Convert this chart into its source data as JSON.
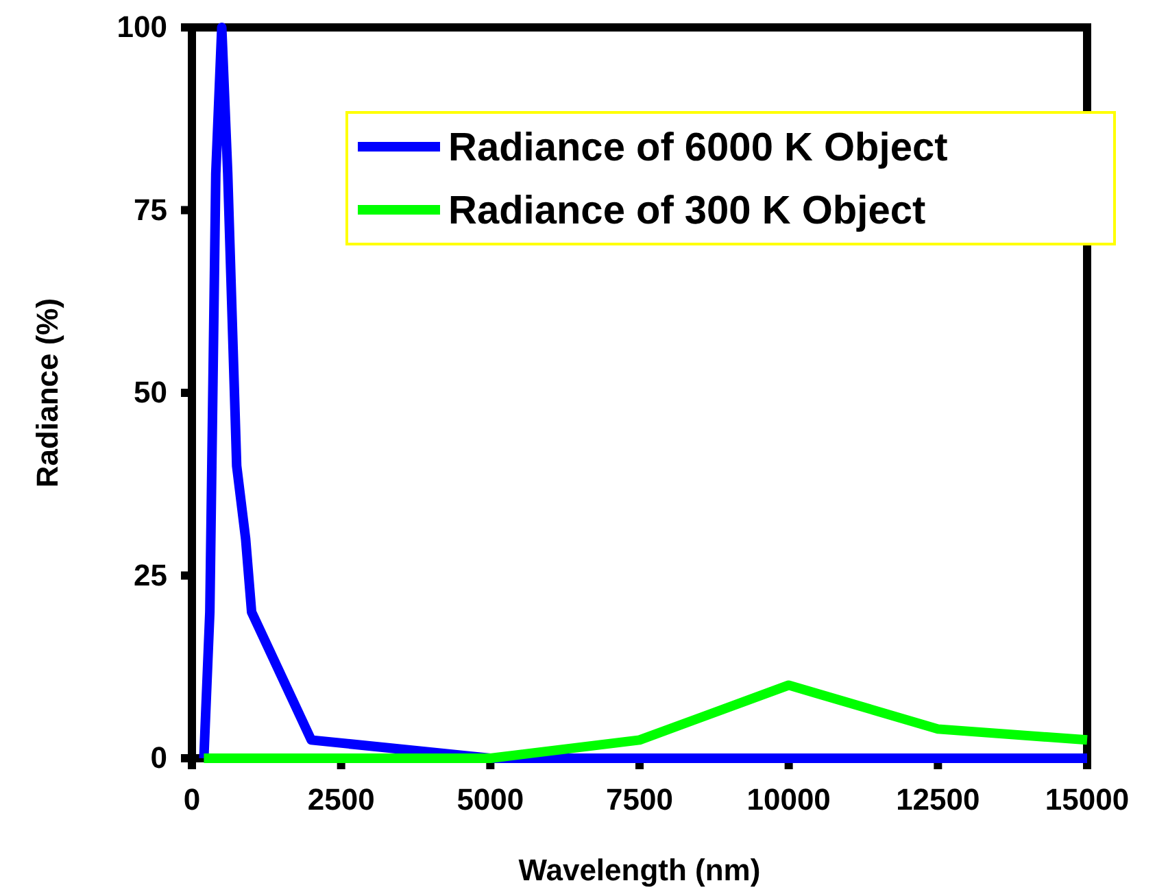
{
  "chart_data": {
    "type": "line",
    "xlabel": "Wavelength (nm)",
    "ylabel": "Radiance (%)",
    "xlim": [
      0,
      15000
    ],
    "xticks": [
      0,
      2500,
      5000,
      7500,
      10000,
      12500,
      15000
    ],
    "ylim": [
      0,
      100
    ],
    "yticks": [
      0,
      25,
      50,
      75,
      100
    ],
    "grid": false,
    "legend": "top right",
    "marker": "none",
    "line_style": "solid",
    "series": [
      {
        "name": "Radiance of 6000 K Object",
        "color": "#0000ff",
        "x": [
          200,
          300,
          400,
          500,
          600,
          750,
          900,
          1000,
          2000,
          5000,
          7500,
          10000,
          12500,
          15000
        ],
        "values": [
          0,
          20,
          80,
          100,
          80,
          40,
          30,
          20,
          2.5,
          0,
          0,
          0,
          0,
          0
        ]
      },
      {
        "name": "Radiance of 300 K Object",
        "color": "#00ff00",
        "x": [
          200,
          5000,
          7500,
          10000,
          12500,
          15000
        ],
        "values": [
          0,
          0,
          2.5,
          10,
          4,
          2.5
        ]
      }
    ]
  }
}
